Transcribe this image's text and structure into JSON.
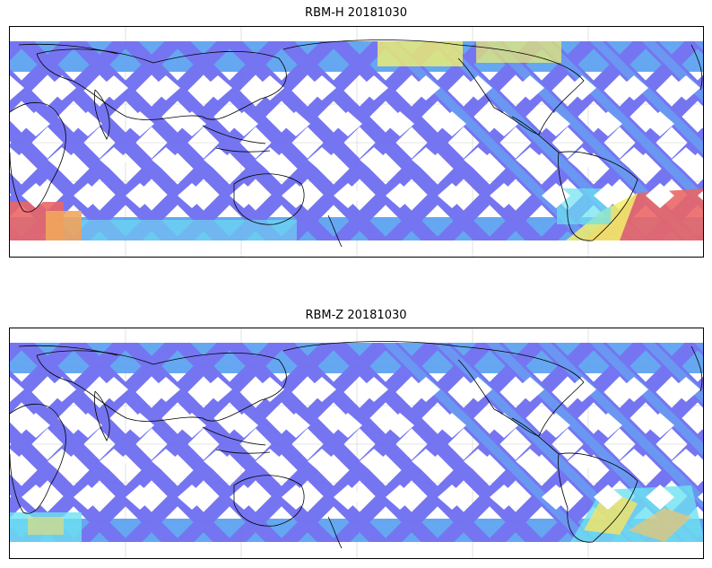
{
  "panels": [
    {
      "title": "RBM-H 20181030",
      "colors": {
        "track": "#6a6af0",
        "track_light": "#5aa0f0",
        "cyan": "#60e0f0",
        "yellow": "#f0f060",
        "orange": "#f0a050",
        "red": "#e85a5a"
      }
    },
    {
      "title": "RBM-Z 20181030",
      "colors": {
        "track": "#6a6af0",
        "track_light": "#5aa0f0",
        "cyan": "#60e0f0",
        "yellow": "#f0e060",
        "orange": "#f0c060",
        "red": "#e8a060"
      }
    }
  ],
  "map": {
    "projection": "plate carree, centered near 100°E",
    "coastline_color": "#000000",
    "gridlines": true
  }
}
